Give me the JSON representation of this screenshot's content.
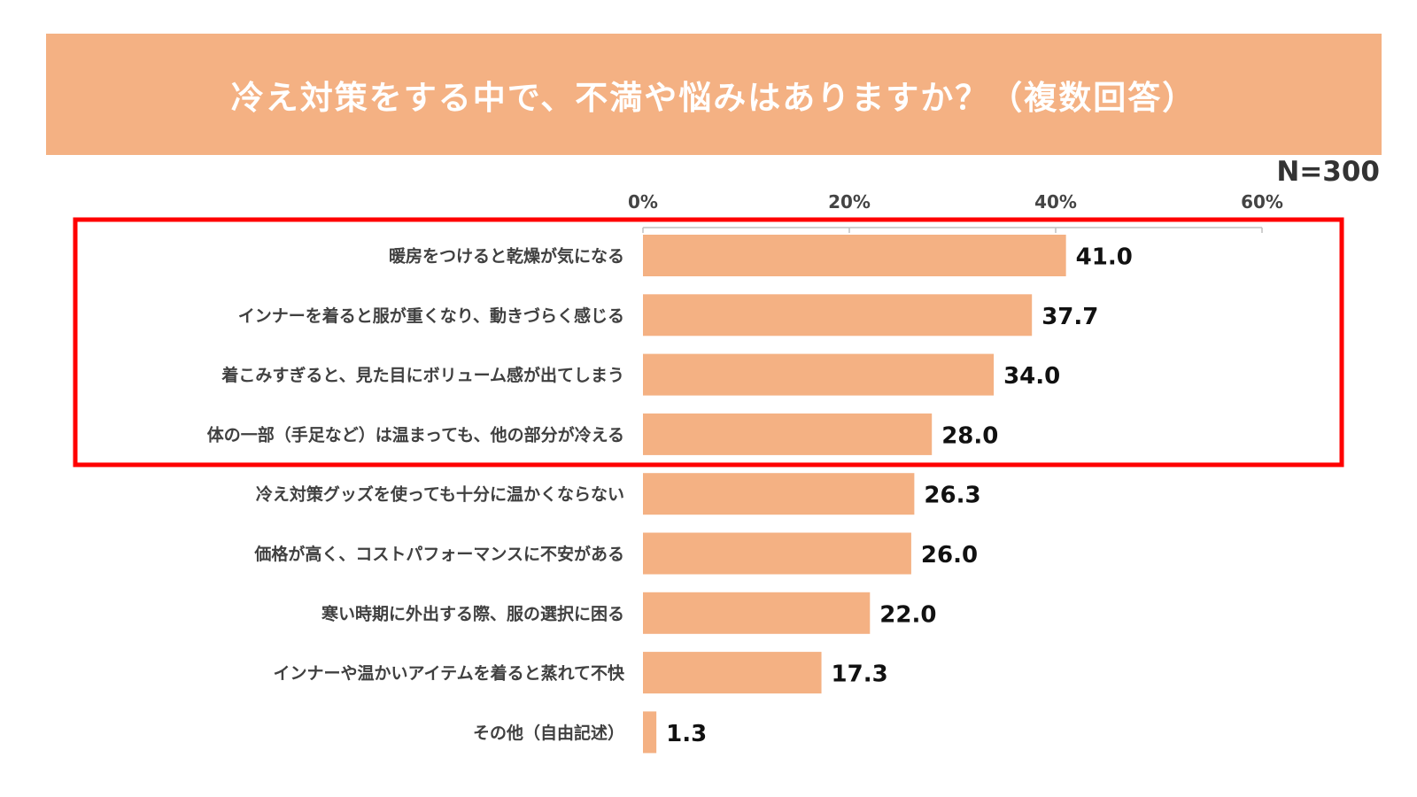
{
  "header": {
    "title": "冷え対策をする中で、不満や悩みはありますか？（複数回答）",
    "sample_size": "N=300"
  },
  "colors": {
    "banner": "#F4B183",
    "bar": "#F4B183",
    "highlight_box": "#FF0000",
    "axis": "#BFBFBF"
  },
  "chart_data": {
    "type": "bar",
    "orientation": "horizontal",
    "title": "冷え対策をする中で、不満や悩みはありますか？（複数回答）",
    "xlabel": "",
    "ylabel": "",
    "xlim": [
      0,
      60
    ],
    "ticks": [
      0,
      20,
      40,
      60
    ],
    "tick_labels": [
      "0%",
      "20%",
      "40%",
      "60%"
    ],
    "unit": "%",
    "categories": [
      "暖房をつけると乾燥が気になる",
      "インナーを着ると服が重くなり、動きづらく感じる",
      "着こみすぎると、見た目にボリューム感が出てしまう",
      "体の一部（手足など）は温まっても、他の部分が冷える",
      "冷え対策グッズを使っても十分に温かくならない",
      "価格が高く、コストパフォーマンスに不安がある",
      "寒い時期に外出する際、服の選択に困る",
      "インナーや温かいアイテムを着ると蒸れて不快",
      "その他（自由記述）"
    ],
    "values": [
      41.0,
      37.7,
      34.0,
      28.0,
      26.3,
      26.0,
      22.0,
      17.3,
      1.3
    ],
    "value_labels": [
      "41.0",
      "37.7",
      "34.0",
      "28.0",
      "26.3",
      "26.0",
      "22.0",
      "17.3",
      "1.3"
    ],
    "highlighted_categories": [
      0,
      1,
      2,
      3
    ],
    "grid": false,
    "legend": "none"
  }
}
